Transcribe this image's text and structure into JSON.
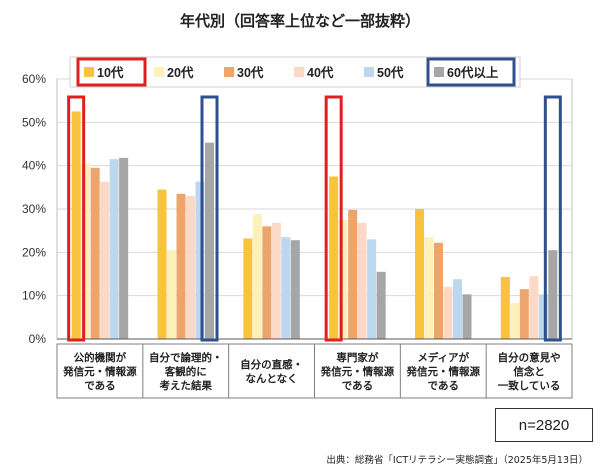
{
  "chart_data": {
    "type": "bar",
    "title": "年代別（回答率上位など一部抜粋）",
    "ylim": [
      0,
      60
    ],
    "yticks": [
      "0%",
      "10%",
      "20%",
      "30%",
      "40%",
      "50%",
      "60%"
    ],
    "grid": true,
    "legend_position": "top",
    "categories": [
      [
        "公的機関が",
        "発信元・情報源",
        "である"
      ],
      [
        "自分で論理的・",
        "客観的に",
        "考えた結果"
      ],
      [
        "自分の直感・",
        "なんとなく"
      ],
      [
        "専門家が",
        "発信元・情報源",
        "である"
      ],
      [
        "メディアが",
        "発信元・情報源",
        "である"
      ],
      [
        "自分の意見や",
        "信念と",
        "一致している"
      ]
    ],
    "series": [
      {
        "name": "10代",
        "color": "#f9c33d",
        "values": [
          52.5,
          34.5,
          23.2,
          37.5,
          30.0,
          14.3
        ]
      },
      {
        "name": "20代",
        "color": "#fdf0b8",
        "values": [
          40.5,
          20.5,
          28.8,
          27.5,
          23.5,
          8.3
        ]
      },
      {
        "name": "30代",
        "color": "#eda56b",
        "values": [
          39.5,
          33.5,
          26.0,
          29.8,
          22.2,
          11.5
        ]
      },
      {
        "name": "40代",
        "color": "#fcd9c7",
        "values": [
          36.3,
          33.0,
          26.8,
          26.8,
          12.0,
          14.5
        ]
      },
      {
        "name": "50代",
        "color": "#bdd7ee",
        "values": [
          41.5,
          36.3,
          23.5,
          23.0,
          13.8,
          10.3
        ]
      },
      {
        "name": "60代以上",
        "color": "#a6a6a6",
        "values": [
          41.8,
          45.3,
          22.8,
          15.5,
          10.3,
          20.5
        ]
      }
    ],
    "highlights": [
      {
        "series": 0,
        "category": 0,
        "color": "#e02020"
      },
      {
        "series": 5,
        "category": 1,
        "color": "#2f4f8f"
      },
      {
        "series": 0,
        "category": 3,
        "color": "#e02020"
      },
      {
        "series": 5,
        "category": 5,
        "color": "#2f4f8f"
      }
    ],
    "legend_boxes": [
      {
        "series": 0,
        "color": "#e02020"
      },
      {
        "series": 5,
        "color": "#2f4f8f"
      }
    ]
  },
  "sample_size": "n=2820",
  "source": "出典：総務省「ICTリテラシー実態調査」（2025年5月13日）"
}
